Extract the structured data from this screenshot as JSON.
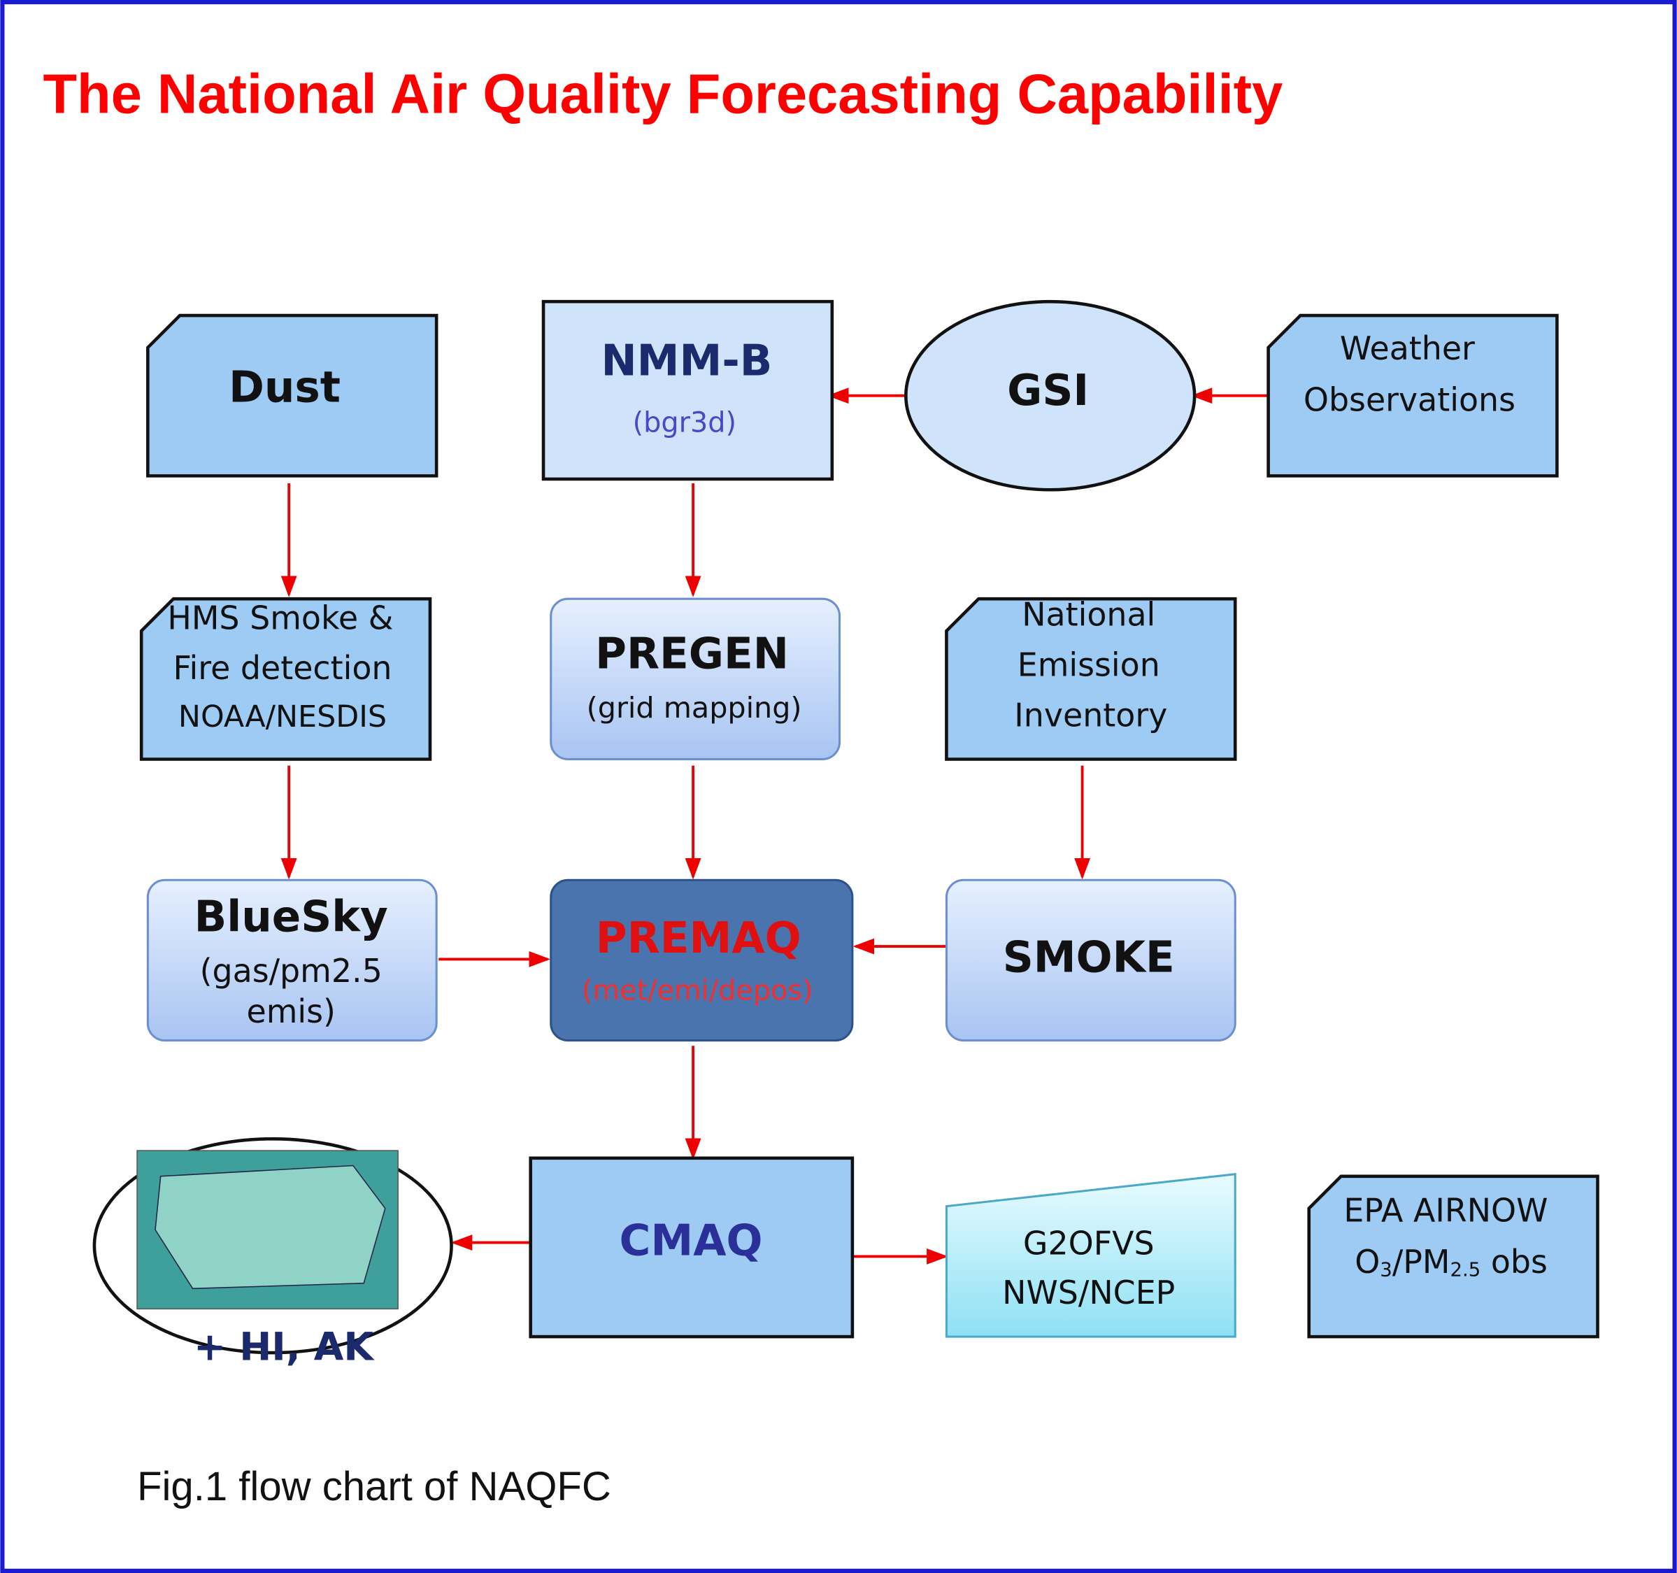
{
  "header": {
    "title": "The National Air Quality Forecasting Capability"
  },
  "nodes": {
    "dust": {
      "lines": [
        "Dust"
      ]
    },
    "nmmb": {
      "lines": [
        "NMM-B",
        "(bgr3d)"
      ]
    },
    "gsi": {
      "lines": [
        "GSI"
      ]
    },
    "weather": {
      "lines": [
        "Weather",
        "Observations"
      ]
    },
    "hms": {
      "lines": [
        "HMS Smoke &",
        "Fire detection",
        "NOAA/NESDIS"
      ]
    },
    "pregen": {
      "lines": [
        "PREGEN",
        "(grid mapping)"
      ]
    },
    "nei": {
      "lines": [
        "National",
        "Emission",
        "Inventory"
      ]
    },
    "bluesky": {
      "lines": [
        "BlueSky",
        "(gas/pm2.5",
        "emis)"
      ]
    },
    "premaq": {
      "lines": [
        "PREMAQ",
        "(met/emi/depos)"
      ]
    },
    "smoke": {
      "lines": [
        "SMOKE"
      ]
    },
    "map": {
      "lines": [
        "+ HI, AK"
      ]
    },
    "cmaq": {
      "lines": [
        "CMAQ"
      ]
    },
    "g2ofvs": {
      "lines": [
        "G2OFVS",
        "NWS/NCEP"
      ]
    },
    "airnow": {
      "lines": [
        "EPA AIRNOW"
      ],
      "obs": [
        "O",
        "3",
        "/PM",
        "2.5",
        " obs"
      ]
    }
  },
  "caption": "Fig.1 flow chart of NAQFC"
}
